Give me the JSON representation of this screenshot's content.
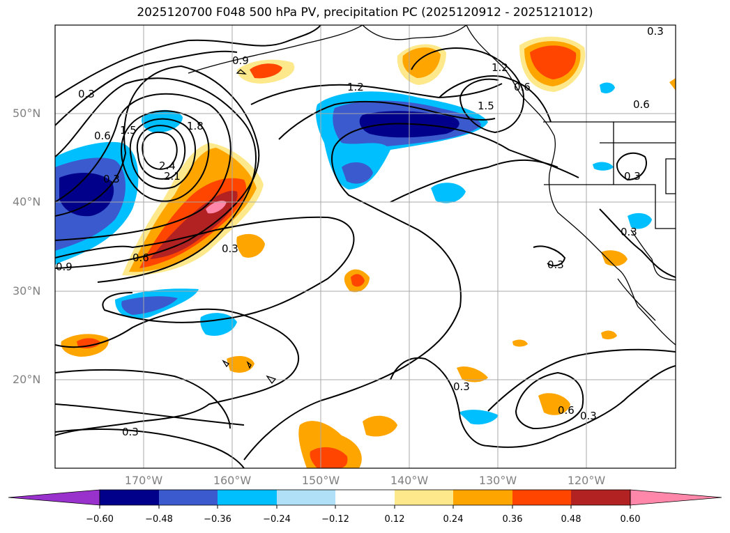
{
  "title": "2025120700 F048 500 hPa PV, precipitation PC (2025120912 - 2025121012)",
  "map": {
    "region": "North Pacific / Western North America",
    "lat_labels": [
      "50°N",
      "40°N",
      "30°N",
      "20°N"
    ],
    "lon_labels": [
      "170°W",
      "160°W",
      "150°W",
      "140°W",
      "130°W",
      "120°W"
    ],
    "gridlines": true,
    "contour_field": "500 hPa PV",
    "contour_labels": [
      "0.3",
      "0.6",
      "0.9",
      "1.2",
      "1.5",
      "1.8",
      "2.1",
      "2.4",
      "0.3",
      "0.6",
      "0.9",
      "1.2",
      "1.5",
      "0.3",
      "0.3",
      "0.3",
      "0.6",
      "0.3",
      "0.3",
      "0.3",
      "0.3",
      "0.6",
      "0.6",
      "0.3"
    ],
    "contour_color": "#000000",
    "fill_field": "precipitation PC",
    "coastline_color": "#000000"
  },
  "colorbar": {
    "orientation": "horizontal",
    "extend": "both",
    "ticks": [
      "−0.60",
      "−0.48",
      "−0.36",
      "−0.24",
      "−0.12",
      "0.12",
      "0.24",
      "0.36",
      "0.48",
      "0.60"
    ],
    "levels": [
      {
        "range": "< -0.60",
        "color": "#9932cc"
      },
      {
        "range": "-0.60 to -0.48",
        "color": "#00008b"
      },
      {
        "range": "-0.48 to -0.36",
        "color": "#3a5acd"
      },
      {
        "range": "-0.36 to -0.24",
        "color": "#00bfff"
      },
      {
        "range": "-0.24 to -0.12",
        "color": "#b0e0f8"
      },
      {
        "range": "-0.12 to 0.12",
        "color": "#ffffff"
      },
      {
        "range": "0.12 to 0.24",
        "color": "#fde98b"
      },
      {
        "range": "0.24 to 0.36",
        "color": "#ffa500"
      },
      {
        "range": "0.36 to 0.48",
        "color": "#ff4500"
      },
      {
        "range": "0.48 to 0.60",
        "color": "#b22222"
      },
      {
        "range": "> 0.60",
        "color": "#ff88aa"
      }
    ]
  }
}
